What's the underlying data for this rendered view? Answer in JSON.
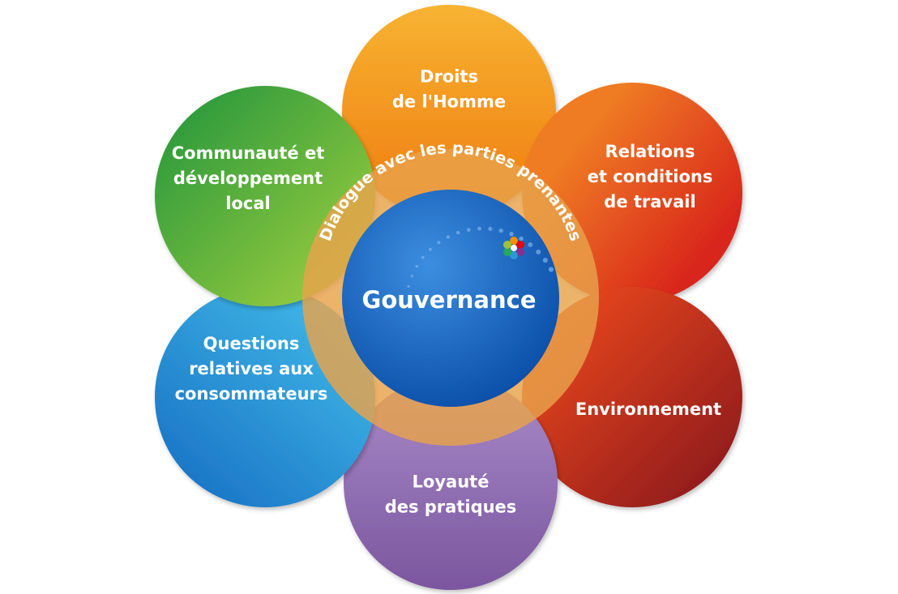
{
  "center": {
    "label": "Gouvernance"
  },
  "ring": {
    "label": "Dialogue avec les parties prenantes"
  },
  "petals": [
    {
      "id": "droits-homme",
      "lines": [
        "Droits",
        "de l'Homme"
      ],
      "color_light": "#f7b332",
      "color_dark": "#ef7a0f"
    },
    {
      "id": "relations-travail",
      "lines": [
        "Relations",
        "et conditions",
        "de travail"
      ],
      "color_light": "#ef7c24",
      "color_dark": "#d9261c"
    },
    {
      "id": "environnement",
      "lines": [
        "Environnement"
      ],
      "color_light": "#e0421c",
      "color_dark": "#8f1b1f"
    },
    {
      "id": "loyaute-pratiques",
      "lines": [
        "Loyauté",
        "des pratiques"
      ],
      "color_light": "#a88bc8",
      "color_dark": "#7b569f"
    },
    {
      "id": "questions-consommateurs",
      "lines": [
        "Questions",
        "relatives aux",
        "consommateurs"
      ],
      "color_light": "#3fb6e6",
      "color_dark": "#1a74c6"
    },
    {
      "id": "communaute-developpement",
      "lines": [
        "Communauté et",
        "développement",
        "local"
      ],
      "color_light": "#8cc63f",
      "color_dark": "#2c9a3b"
    }
  ],
  "colors": {
    "center_light": "#3c8ee0",
    "center_dark": "#0a4ea8",
    "ring": "#e8a24a"
  },
  "icons": {
    "logo": "flower-logo-icon"
  }
}
